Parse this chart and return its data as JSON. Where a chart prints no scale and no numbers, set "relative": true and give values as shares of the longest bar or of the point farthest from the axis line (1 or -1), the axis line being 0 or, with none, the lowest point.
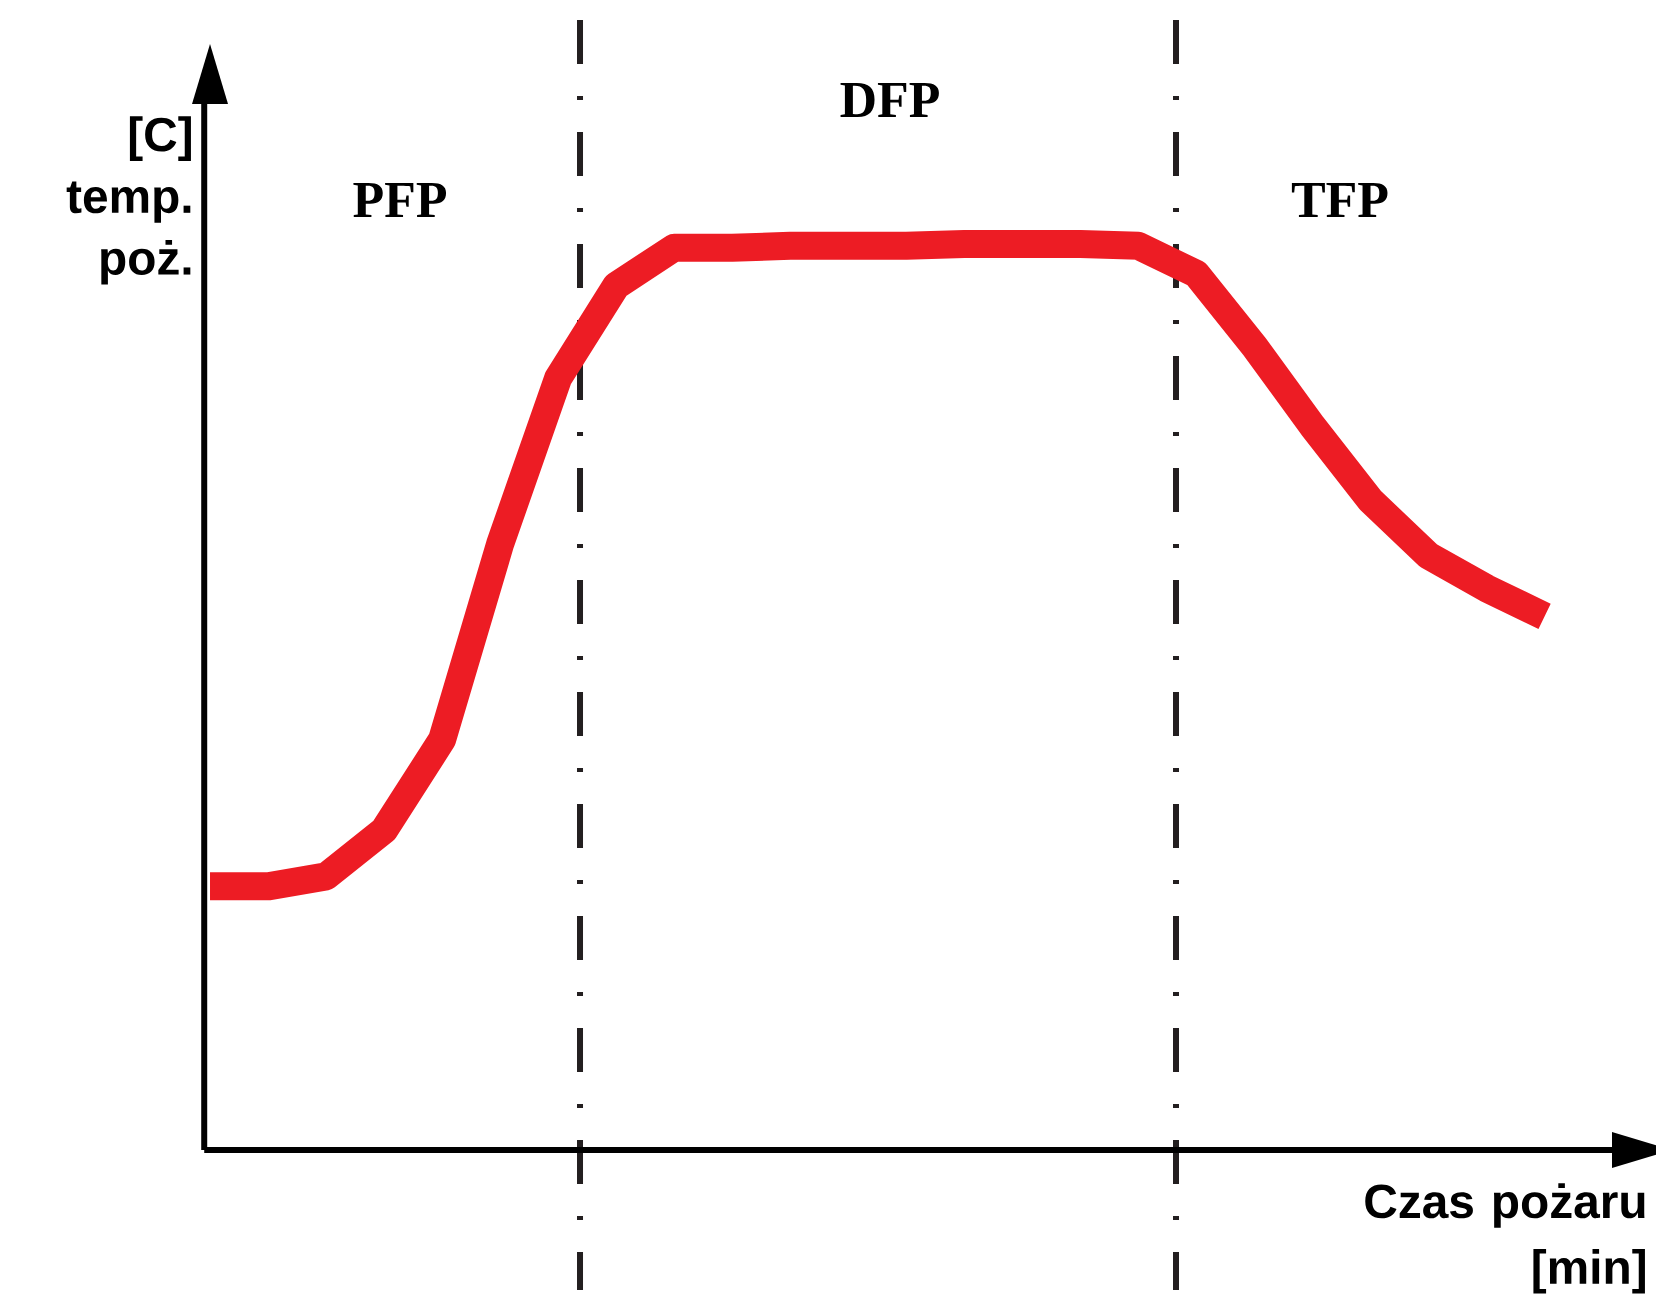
{
  "chart_data": {
    "type": "line",
    "relative": true,
    "xlabel": "Czas pożaru [min]",
    "ylabel": "[C] temp. poż.",
    "categories": [
      null,
      null,
      null,
      null,
      null,
      null,
      null,
      null,
      null,
      null,
      null,
      null,
      null,
      null,
      null,
      null,
      null,
      null,
      null,
      null,
      null,
      null,
      null,
      null
    ],
    "series": [
      {
        "color": "#ed1c24",
        "values": [
          0.291,
          0.291,
          0.302,
          0.353,
          0.453,
          0.669,
          0.852,
          0.954,
          0.996,
          0.996,
          0.998,
          0.998,
          0.998,
          1.0,
          1.0,
          1.0,
          0.998,
          0.967,
          0.887,
          0.799,
          0.717,
          0.656,
          0.62,
          0.589
        ]
      }
    ],
    "annotations": [
      "PFP",
      "DFP",
      "TFP"
    ],
    "marker": "none",
    "line_style": "solid"
  }
}
